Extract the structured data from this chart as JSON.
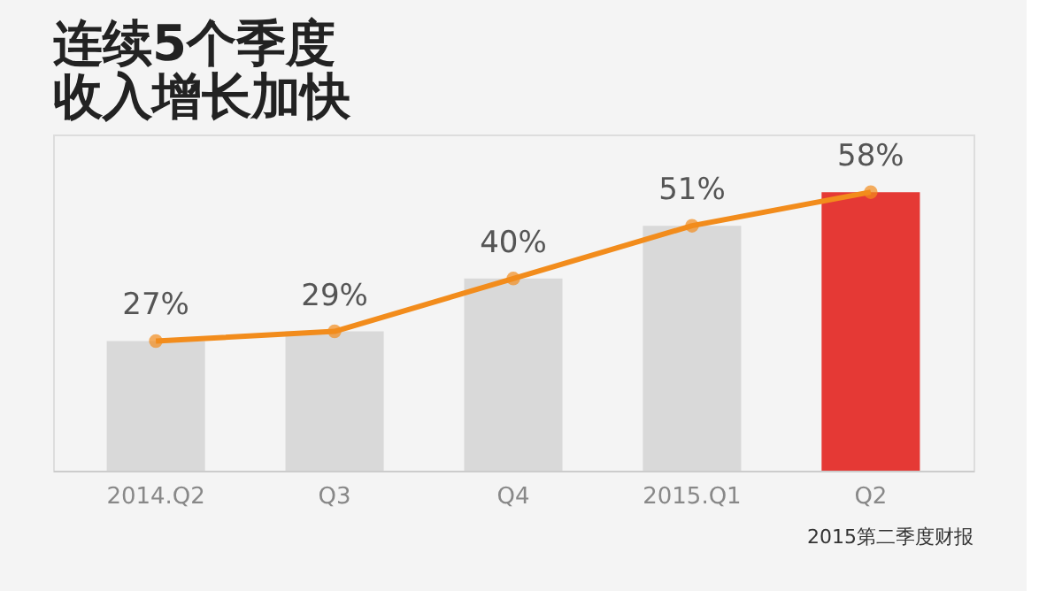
{
  "chart_data": {
    "type": "line",
    "title": "连续5个季度",
    "subtitle": "收入增长加快",
    "categories": [
      "2014.Q2",
      "Q3",
      "Q4",
      "2015.Q1",
      "Q2"
    ],
    "ylim": [
      0,
      70
    ],
    "tick_labels": "x",
    "grid": false,
    "marker": "circle",
    "annotations": [
      "2015第二季度财报"
    ],
    "series": [
      {
        "type": "bar",
        "colors": [
          "#d9d9d9",
          "#d9d9d9",
          "#d9d9d9",
          "#d9d9d9",
          "#e53935"
        ],
        "values": [
          27,
          29,
          40,
          51,
          58
        ]
      },
      {
        "color": "#f28c1c",
        "values": [
          27,
          29,
          40,
          51,
          58
        ],
        "value_labels": [
          "27%",
          "29%",
          "40%",
          "51%",
          "58%"
        ]
      }
    ]
  }
}
